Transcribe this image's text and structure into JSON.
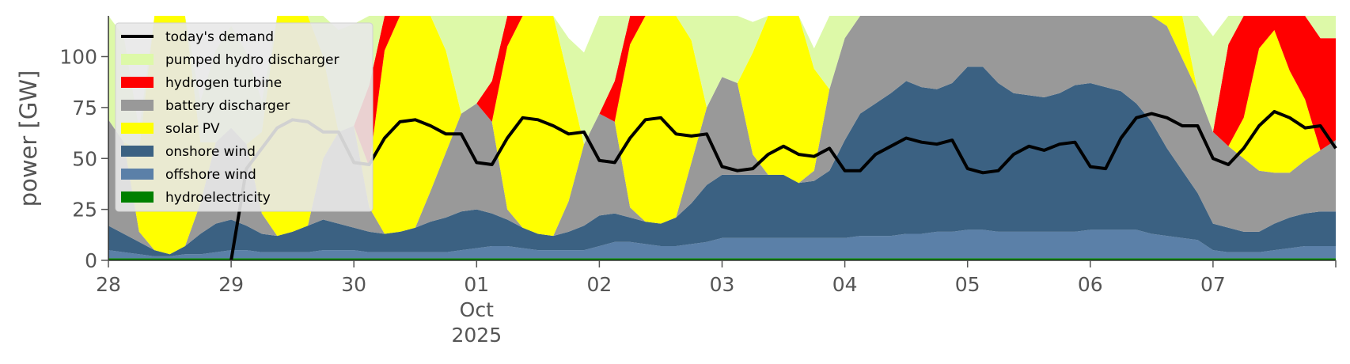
{
  "chart_data": {
    "type": "area",
    "title": "",
    "xlabel": "",
    "ylabel": "power [GW]",
    "ylim": [
      0,
      120
    ],
    "grid": false,
    "legend_placement": "top-left",
    "x_unit": "hours since Sep 28 2025 00:00",
    "x_range": [
      0,
      240
    ],
    "yticks": [
      0,
      25,
      50,
      75,
      100
    ],
    "x_tick_labels": [
      {
        "x": 0,
        "lines": [
          "28"
        ]
      },
      {
        "x": 24,
        "lines": [
          "29"
        ]
      },
      {
        "x": 48,
        "lines": [
          "30"
        ]
      },
      {
        "x": 72,
        "lines": [
          "01",
          "Oct",
          "2025"
        ]
      },
      {
        "x": 96,
        "lines": [
          "02"
        ]
      },
      {
        "x": 120,
        "lines": [
          "03"
        ]
      },
      {
        "x": 144,
        "lines": [
          "04"
        ]
      },
      {
        "x": 168,
        "lines": [
          "05"
        ]
      },
      {
        "x": 192,
        "lines": [
          "06"
        ]
      },
      {
        "x": 216,
        "lines": [
          "07"
        ]
      }
    ],
    "x": [
      0,
      3,
      6,
      9,
      12,
      15,
      18,
      21,
      24,
      27,
      30,
      33,
      36,
      39,
      42,
      45,
      48,
      51,
      54,
      57,
      60,
      63,
      66,
      69,
      72,
      75,
      78,
      81,
      84,
      87,
      90,
      93,
      96,
      99,
      102,
      105,
      108,
      111,
      114,
      117,
      120,
      123,
      126,
      129,
      132,
      135,
      138,
      141,
      144,
      147,
      150,
      153,
      156,
      159,
      162,
      165,
      168,
      171,
      174,
      177,
      180,
      183,
      186,
      189,
      192,
      195,
      198,
      201,
      204,
      207,
      210,
      213,
      216,
      219,
      222,
      225,
      228,
      231,
      234,
      237,
      240
    ],
    "series": [
      {
        "name": "hydroelectricity",
        "color": "#008000",
        "values": [
          1,
          1,
          1,
          1,
          1,
          1,
          1,
          1,
          1,
          1,
          1,
          1,
          1,
          1,
          1,
          1,
          1,
          1,
          1,
          1,
          1,
          1,
          1,
          1,
          1,
          1,
          1,
          1,
          1,
          1,
          1,
          1,
          1,
          1,
          1,
          1,
          1,
          1,
          1,
          1,
          1,
          1,
          1,
          1,
          1,
          1,
          1,
          1,
          1,
          1,
          1,
          1,
          1,
          1,
          1,
          1,
          1,
          1,
          1,
          1,
          1,
          1,
          1,
          1,
          1,
          1,
          1,
          1,
          1,
          1,
          1,
          1,
          1,
          1,
          1,
          1,
          1,
          1,
          1,
          1,
          1
        ]
      },
      {
        "name": "offshore wind",
        "color": "#5b80a8",
        "values": [
          4,
          3,
          2,
          1,
          1,
          2,
          2,
          3,
          4,
          4,
          3,
          3,
          3,
          3,
          4,
          4,
          4,
          3,
          3,
          3,
          3,
          3,
          3,
          4,
          5,
          6,
          6,
          5,
          4,
          4,
          4,
          4,
          6,
          8,
          8,
          7,
          6,
          6,
          7,
          8,
          10,
          10,
          10,
          10,
          10,
          10,
          10,
          10,
          10,
          11,
          11,
          11,
          12,
          12,
          13,
          13,
          14,
          14,
          13,
          13,
          13,
          13,
          13,
          13,
          14,
          14,
          14,
          14,
          12,
          11,
          10,
          9,
          4,
          3,
          3,
          3,
          4,
          5,
          6,
          6,
          6
        ]
      },
      {
        "name": "onshore wind",
        "color": "#3b6182",
        "values": [
          12,
          9,
          6,
          3,
          1,
          4,
          10,
          14,
          15,
          12,
          9,
          8,
          10,
          13,
          15,
          13,
          11,
          10,
          9,
          10,
          12,
          15,
          17,
          19,
          19,
          16,
          13,
          10,
          8,
          7,
          9,
          12,
          15,
          14,
          12,
          11,
          11,
          14,
          20,
          28,
          31,
          31,
          31,
          31,
          31,
          27,
          28,
          33,
          48,
          60,
          65,
          70,
          75,
          72,
          70,
          73,
          80,
          80,
          73,
          68,
          67,
          66,
          68,
          72,
          72,
          70,
          68,
          62,
          55,
          43,
          33,
          23,
          13,
          12,
          10,
          10,
          13,
          15,
          16,
          17,
          17
        ]
      },
      {
        "name": "battery discharger",
        "color": "#999999",
        "values": [
          52,
          45,
          5,
          0,
          0,
          0,
          15,
          40,
          45,
          40,
          10,
          0,
          0,
          0,
          30,
          45,
          50,
          12,
          0,
          0,
          0,
          15,
          32,
          48,
          52,
          45,
          5,
          0,
          0,
          0,
          15,
          40,
          50,
          45,
          5,
          0,
          0,
          0,
          20,
          38,
          48,
          45,
          10,
          0,
          0,
          0,
          5,
          40,
          50,
          60,
          65,
          70,
          75,
          76,
          80,
          82,
          85,
          80,
          76,
          72,
          70,
          68,
          65,
          68,
          70,
          70,
          68,
          65,
          62,
          60,
          55,
          50,
          45,
          40,
          36,
          30,
          25,
          22,
          26,
          30,
          35
        ]
      },
      {
        "name": "solar PV",
        "color": "#ffff00",
        "values": [
          0,
          0,
          40,
          120,
          120,
          120,
          30,
          0,
          0,
          0,
          40,
          120,
          120,
          120,
          50,
          0,
          0,
          20,
          90,
          120,
          120,
          120,
          50,
          0,
          0,
          0,
          80,
          120,
          120,
          120,
          60,
          0,
          0,
          0,
          80,
          120,
          120,
          120,
          60,
          0,
          0,
          0,
          50,
          120,
          120,
          120,
          50,
          0,
          0,
          40,
          120,
          120,
          120,
          120,
          30,
          0,
          0,
          0,
          90,
          120,
          120,
          120,
          70,
          0,
          0,
          0,
          80,
          120,
          120,
          120,
          60,
          0,
          0,
          0,
          20,
          60,
          70,
          50,
          30,
          0,
          0
        ]
      },
      {
        "name": "hydrogen turbine",
        "color": "#ff0000",
        "values": [
          0,
          0,
          0,
          0,
          0,
          0,
          0,
          0,
          0,
          0,
          0,
          0,
          0,
          0,
          0,
          0,
          0,
          40,
          60,
          0,
          0,
          0,
          0,
          0,
          0,
          20,
          50,
          0,
          0,
          0,
          0,
          0,
          0,
          20,
          45,
          0,
          0,
          0,
          0,
          0,
          0,
          0,
          0,
          0,
          0,
          0,
          0,
          0,
          0,
          0,
          0,
          0,
          0,
          0,
          0,
          0,
          0,
          0,
          0,
          0,
          0,
          0,
          0,
          0,
          0,
          0,
          0,
          0,
          0,
          0,
          0,
          0,
          0,
          50,
          65,
          70,
          70,
          65,
          60,
          55,
          50
        ]
      },
      {
        "name": "pumped hydro discharger",
        "color": "#ddf9a8",
        "values": [
          65,
          52,
          10,
          0,
          0,
          0,
          20,
          45,
          50,
          45,
          15,
          0,
          0,
          0,
          35,
          50,
          50,
          45,
          0,
          0,
          0,
          20,
          35,
          50,
          50,
          45,
          10,
          0,
          0,
          0,
          20,
          45,
          50,
          45,
          10,
          0,
          0,
          0,
          25,
          45,
          50,
          48,
          15,
          0,
          0,
          0,
          10,
          45,
          55,
          62,
          67,
          72,
          77,
          78,
          82,
          84,
          87,
          82,
          78,
          74,
          72,
          70,
          67,
          70,
          72,
          72,
          70,
          67,
          64,
          62,
          57,
          52,
          47,
          42,
          38,
          32,
          27,
          24,
          28,
          32,
          37
        ]
      }
    ],
    "demand": {
      "name": "today's demand",
      "color": "#000000",
      "values": [
        null,
        null,
        null,
        null,
        null,
        null,
        null,
        null,
        0,
        45,
        55,
        65,
        69,
        68,
        63,
        63,
        48,
        47,
        60,
        68,
        69,
        66,
        62,
        62,
        48,
        47,
        60,
        70,
        69,
        66,
        62,
        63,
        49,
        48,
        60,
        69,
        70,
        62,
        61,
        62,
        46,
        44,
        45,
        52,
        56,
        52,
        51,
        55,
        44,
        44,
        52,
        56,
        60,
        58,
        57,
        59,
        45,
        43,
        44,
        52,
        56,
        54,
        57,
        58,
        46,
        45,
        60,
        70,
        72,
        70,
        66,
        66,
        50,
        47,
        55,
        66,
        73,
        70,
        65,
        66,
        55
      ]
    }
  },
  "legend": {
    "items": [
      {
        "label": "today's demand",
        "color": "#000000",
        "kind": "line"
      },
      {
        "label": "pumped hydro discharger",
        "color": "#ddf9a8",
        "kind": "patch"
      },
      {
        "label": "hydrogen turbine",
        "color": "#ff0000",
        "kind": "patch"
      },
      {
        "label": "battery discharger",
        "color": "#999999",
        "kind": "patch"
      },
      {
        "label": "solar PV",
        "color": "#ffff00",
        "kind": "patch"
      },
      {
        "label": "onshore wind",
        "color": "#3b6182",
        "kind": "patch"
      },
      {
        "label": "offshore wind",
        "color": "#5b80a8",
        "kind": "patch"
      },
      {
        "label": "hydroelectricity",
        "color": "#008000",
        "kind": "patch"
      }
    ]
  }
}
